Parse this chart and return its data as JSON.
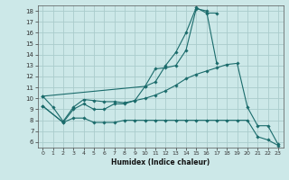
{
  "xlabel": "Humidex (Indice chaleur)",
  "bg_color": "#cce8e8",
  "grid_color": "#aacccc",
  "line_color": "#1a6b6b",
  "xlim": [
    -0.5,
    23.5
  ],
  "ylim": [
    5.5,
    18.5
  ],
  "xticks": [
    0,
    1,
    2,
    3,
    4,
    5,
    6,
    7,
    8,
    9,
    10,
    11,
    12,
    13,
    14,
    15,
    16,
    17,
    18,
    19,
    20,
    21,
    22,
    23
  ],
  "yticks": [
    6,
    7,
    8,
    9,
    10,
    11,
    12,
    13,
    14,
    15,
    16,
    17,
    18
  ],
  "series": [
    {
      "x": [
        0,
        1,
        2,
        3,
        4,
        5,
        6,
        7,
        8,
        9,
        10,
        11,
        12,
        13,
        14,
        15,
        16,
        17
      ],
      "y": [
        10.2,
        9.2,
        7.9,
        9.2,
        9.9,
        9.8,
        9.7,
        9.7,
        9.6,
        9.8,
        11.1,
        12.7,
        12.8,
        13.0,
        14.4,
        18.2,
        18.0,
        13.2
      ]
    },
    {
      "x": [
        0,
        10,
        11,
        12,
        13,
        14,
        15,
        16,
        17
      ],
      "y": [
        10.2,
        11.1,
        11.5,
        13.0,
        14.2,
        16.0,
        18.3,
        17.8,
        17.8
      ]
    },
    {
      "x": [
        0,
        2,
        3,
        4,
        5,
        6,
        7,
        8,
        9,
        10,
        11,
        12,
        13,
        14,
        15,
        16,
        17,
        18,
        19,
        20,
        21,
        22,
        23
      ],
      "y": [
        9.3,
        7.8,
        9.0,
        9.5,
        9.0,
        9.0,
        9.5,
        9.5,
        9.8,
        10.0,
        10.3,
        10.7,
        11.2,
        11.8,
        12.2,
        12.5,
        12.8,
        13.1,
        13.2,
        9.2,
        7.5,
        7.5,
        5.8
      ]
    },
    {
      "x": [
        0,
        2,
        3,
        4,
        5,
        6,
        7,
        8,
        9,
        10,
        11,
        12,
        13,
        14,
        15,
        16,
        17,
        18,
        19,
        20,
        21,
        22,
        23
      ],
      "y": [
        9.3,
        7.8,
        8.2,
        8.2,
        7.8,
        7.8,
        7.8,
        8.0,
        8.0,
        8.0,
        8.0,
        8.0,
        8.0,
        8.0,
        8.0,
        8.0,
        8.0,
        8.0,
        8.0,
        8.0,
        6.5,
        6.2,
        5.7
      ]
    }
  ]
}
